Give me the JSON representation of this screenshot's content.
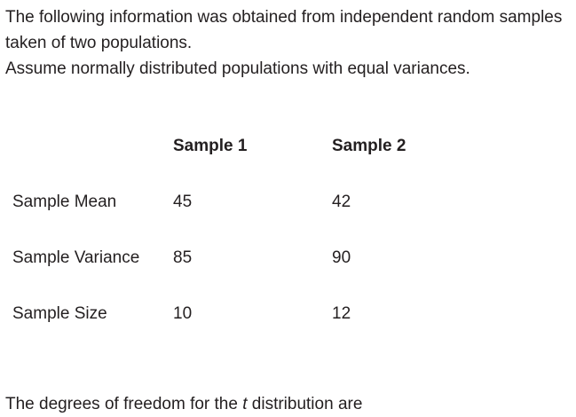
{
  "colors": {
    "text": "#231f20",
    "background": "#ffffff"
  },
  "intro": {
    "line1": "The following information was obtained from independent random samples",
    "line2": "taken of two populations.",
    "line3": "Assume normally distributed populations with equal variances."
  },
  "table": {
    "col1_header": "Sample 1",
    "col2_header": "Sample 2",
    "rows": [
      {
        "label": "Sample Mean",
        "sample1": "45",
        "sample2": "42"
      },
      {
        "label": "Sample Variance",
        "sample1": "85",
        "sample2": "90"
      },
      {
        "label": "Sample Size",
        "sample1": "10",
        "sample2": "12"
      }
    ]
  },
  "footer": {
    "prefix": "The degrees of freedom for the ",
    "italic_term": "t",
    "suffix": " distribution are"
  },
  "chart_data": {
    "type": "table",
    "title": "",
    "categories": [
      "Sample Mean",
      "Sample Variance",
      "Sample Size"
    ],
    "series": [
      {
        "name": "Sample 1",
        "values": [
          45,
          85,
          10
        ]
      },
      {
        "name": "Sample 2",
        "values": [
          42,
          90,
          12
        ]
      }
    ]
  }
}
